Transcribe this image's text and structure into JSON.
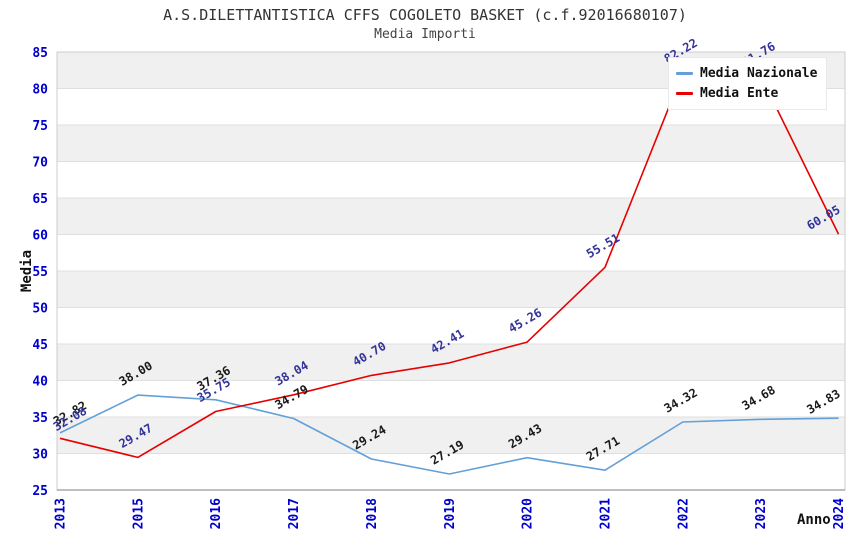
{
  "page": {
    "title": "A.S.DILETTANTISTICA CFFS COGOLETO BASKET (c.f.92016680107)",
    "subtitle": "Media Importi"
  },
  "chart_data": {
    "type": "line",
    "title": "A.S.DILETTANTISTICA CFFS COGOLETO BASKET (c.f.92016680107)",
    "subtitle": "Media Importi",
    "xlabel": "Anno",
    "ylabel": "Media",
    "ylim": [
      25,
      85
    ],
    "ytick_step": 5,
    "yticks": [
      25,
      30,
      35,
      40,
      45,
      50,
      55,
      60,
      65,
      70,
      75,
      80,
      85
    ],
    "grid": "horizontal-bands-alternating",
    "legend_position": "top-right",
    "categories": [
      "2013",
      "2015",
      "2016",
      "2017",
      "2018",
      "2019",
      "2020",
      "2021",
      "2022",
      "2023",
      "2024"
    ],
    "series": [
      {
        "name": "Media Nazionale",
        "color": "#64A0D8",
        "label_color": "#1A1A1A",
        "values": [
          32.82,
          38.0,
          37.36,
          34.79,
          29.24,
          27.19,
          29.43,
          27.71,
          34.32,
          34.68,
          34.83
        ]
      },
      {
        "name": "Media Ente",
        "color": "#E60000",
        "label_color": "#333399",
        "values": [
          32.08,
          29.47,
          35.75,
          38.04,
          40.7,
          42.41,
          45.26,
          55.51,
          82.22,
          81.76,
          60.05
        ]
      }
    ],
    "colors": {
      "tick_label": "#0000CC",
      "band_fill": "#F0F0F0",
      "band_alt_fill": "#FFFFFF",
      "plot_border": "#CCCCCC",
      "axis_line": "#999999",
      "title": "#333333",
      "legend_bg": "#FFFFFF"
    }
  }
}
